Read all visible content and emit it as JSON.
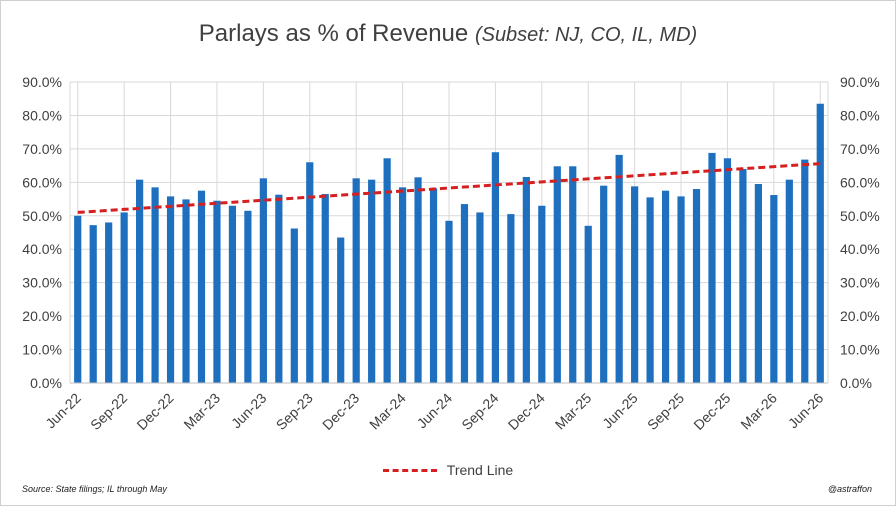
{
  "chart_data": {
    "type": "bar",
    "title": "Parlays as % of Revenue",
    "subtitle": "(Subset: NJ, CO, IL, MD)",
    "categories": [
      "Jun-22",
      "Jul-22",
      "Aug-22",
      "Sep-22",
      "Oct-22",
      "Nov-22",
      "Dec-22",
      "Jan-23",
      "Feb-23",
      "Mar-23",
      "Apr-23",
      "May-23",
      "Jun-23",
      "Jul-23",
      "Aug-23",
      "Sep-23",
      "Oct-23",
      "Nov-23",
      "Dec-23",
      "Jan-24",
      "Feb-24",
      "Mar-24",
      "Apr-24",
      "May-24",
      "Jun-24",
      "Jul-24",
      "Aug-24",
      "Sep-24",
      "Oct-24",
      "Nov-24",
      "Dec-24",
      "Jan-25",
      "Feb-25",
      "Mar-25",
      "Apr-25",
      "May-25",
      "Jun-25",
      "Jul-25",
      "Aug-25",
      "Sep-25",
      "Oct-25",
      "Nov-25",
      "Dec-25",
      "Jan-26",
      "Feb-26",
      "Mar-26",
      "Apr-26",
      "May-26",
      "Jun-26"
    ],
    "tick_labels": [
      "Jun-22",
      "Sep-22",
      "Dec-22",
      "Mar-23",
      "Jun-23",
      "Sep-23",
      "Dec-23",
      "Mar-24",
      "Jun-24",
      "Sep-24",
      "Dec-24",
      "Mar-25",
      "Jun-25",
      "Sep-25",
      "Dec-25",
      "Mar-26",
      "Jun-26"
    ],
    "values": [
      50.0,
      47.2,
      48.0,
      51.0,
      60.8,
      58.5,
      55.8,
      54.9,
      57.5,
      54.5,
      53.0,
      51.5,
      61.2,
      56.3,
      46.2,
      66.0,
      56.5,
      43.5,
      61.2,
      60.8,
      67.2,
      58.5,
      61.5,
      58.2,
      48.5,
      53.5,
      51.0,
      69.0,
      50.5,
      61.6,
      53.0,
      64.8,
      64.8,
      47.0,
      59.0,
      68.2,
      58.8,
      55.5,
      57.5,
      55.8,
      58.0,
      68.8,
      67.2,
      64.0,
      59.5,
      56.2,
      60.8,
      66.8,
      83.5
    ],
    "trend": {
      "name": "Trend Line",
      "start": 51.0,
      "end": 65.6
    },
    "ylim": [
      0,
      90
    ],
    "yticks": [
      "0.0%",
      "10.0%",
      "20.0%",
      "30.0%",
      "40.0%",
      "50.0%",
      "60.0%",
      "70.0%",
      "80.0%",
      "90.0%"
    ],
    "grid": true,
    "legend_position": "bottom",
    "colors": {
      "bar": "#1f6fbf",
      "trend": "#d62020",
      "grid": "#d9d9d9",
      "text": "#404040"
    }
  },
  "footer": {
    "source": "Source:  State filings; IL through  May",
    "credit": "@astraffon"
  }
}
